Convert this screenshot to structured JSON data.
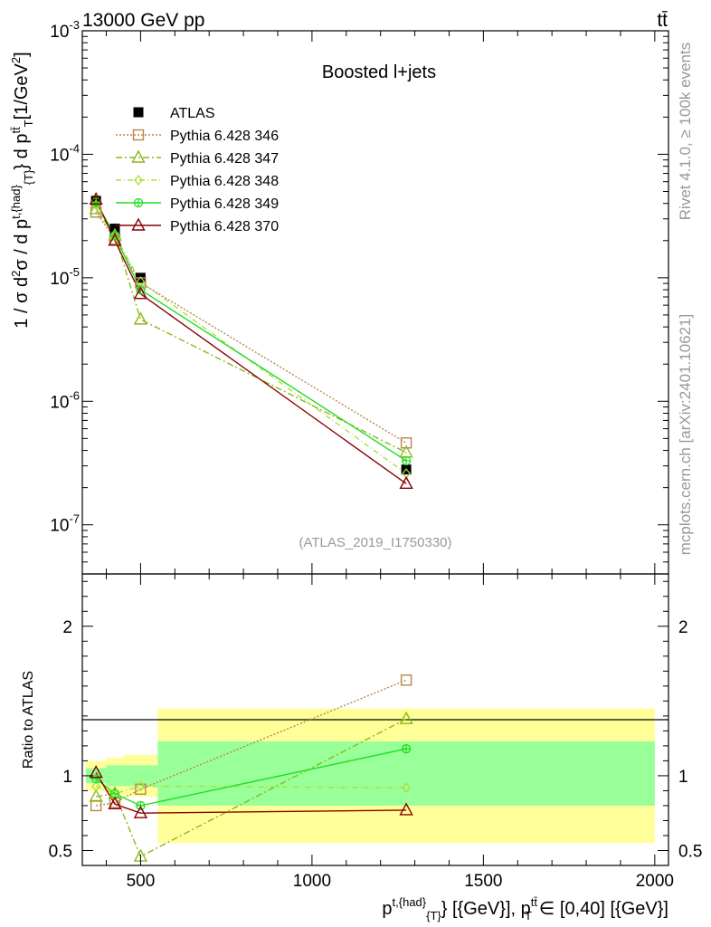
{
  "header": {
    "energy_label": "13000 GeV pp",
    "process_label": "tt̄"
  },
  "side_labels": {
    "rivet": "Rivet 4.1.0, ≥ 100k events",
    "mcplots": "mcplots.cern.ch [arXiv:2401.10621]"
  },
  "colors": {
    "atlas": "#000000",
    "p346": "#b8864b",
    "p347": "#8db81a",
    "p348": "#a8e03a",
    "p349": "#22dd22",
    "p370": "#8b0000",
    "band_inner": "#99ff99",
    "band_outer": "#ffff99"
  },
  "chart_data": [
    {
      "type": "scatter",
      "panel": "main",
      "title": "Boosted l+jets",
      "watermark": "(ATLAS_2019_I1750330)",
      "ylabel": "1 / σ d²σ / d p^{t,{had}}_{T} d p^{tt̄}_{T} [1/GeV²]",
      "ylabel_parts": {
        "base": "1 / σ d",
        "sup2": "2",
        "sigma": "σ / d p",
        "sup_t_had": "t,{had}",
        "sub_T": "{T}",
        "mid": "} d p",
        "sup_tt": "tt̄",
        "sub_T2": "T",
        "unit": "[1/GeV",
        "sup2b": "2",
        "close": "]"
      },
      "y_scale": "log",
      "ylim": [
        4e-08,
        0.001
      ],
      "xlim": [
        330,
        2040
      ],
      "y_ticks": [
        {
          "value": 1e-07,
          "base": "10",
          "exp": "-7"
        },
        {
          "value": 1e-06,
          "base": "10",
          "exp": "-6"
        },
        {
          "value": 1e-05,
          "base": "10",
          "exp": "-5"
        },
        {
          "value": 0.0001,
          "base": "10",
          "exp": "-4"
        },
        {
          "value": 0.001,
          "base": "10",
          "exp": "-3"
        }
      ],
      "series": [
        {
          "name": "ATLAS",
          "key": "atlas",
          "marker": "square-filled",
          "x": [
            370,
            425,
            500,
            1275
          ],
          "y": [
            4.2e-05,
            2.5e-05,
            1e-05,
            2.8e-07
          ]
        },
        {
          "name": "Pythia 6.428 346",
          "key": "p346",
          "marker": "square-open",
          "dash": "2,2",
          "x": [
            370,
            425,
            500,
            1275
          ],
          "y": [
            3.4e-05,
            2.05e-05,
            9.1e-06,
            4.6e-07
          ]
        },
        {
          "name": "Pythia 6.428 347",
          "key": "p347",
          "marker": "triangle-open",
          "dash": "7,3,2,3",
          "x": [
            370,
            425,
            500,
            1275
          ],
          "y": [
            3.6e-05,
            2.2e-05,
            4.6e-06,
            3.85e-07
          ]
        },
        {
          "name": "Pythia 6.428 348",
          "key": "p348",
          "marker": "diamond-open",
          "dash": "6,3,1,3",
          "x": [
            370,
            425,
            500,
            1275
          ],
          "y": [
            3.9e-05,
            2.2e-05,
            9.3e-06,
            2.6e-07
          ]
        },
        {
          "name": "Pythia 6.428 349",
          "key": "p349",
          "marker": "circle-cross",
          "dash": "",
          "x": [
            370,
            425,
            500,
            1275
          ],
          "y": [
            4.1e-05,
            2.2e-05,
            8e-06,
            3.3e-07
          ]
        },
        {
          "name": "Pythia 6.428 370",
          "key": "p370",
          "marker": "triangle-open",
          "dash": "",
          "x": [
            370,
            425,
            500,
            1275
          ],
          "y": [
            4.3e-05,
            2e-05,
            7.4e-06,
            2.15e-07
          ]
        }
      ]
    },
    {
      "type": "scatter",
      "panel": "ratio",
      "ylabel": "Ratio to ATLAS",
      "xlabel": "p^{t,{had}}_{T} [{GeV}], p^{tt̄}_{T} ∈ [0,40] [{GeV}]",
      "xlabel_parts": {
        "p1": "p",
        "sup1": "t,{had}",
        "sub1": "{T}",
        "mid": "} [{GeV}], p",
        "sup2": "tt̄",
        "sub2": "T",
        "end": "∈ [0,40] [{GeV}]"
      },
      "ylim": [
        0.4,
        2.35
      ],
      "xlim": [
        330,
        2040
      ],
      "x_ticks": [
        500,
        1000,
        1500,
        2000
      ],
      "x_tick_labels": [
        "500",
        "1000",
        "1500",
        "2000"
      ],
      "y_ticks": [
        0.5,
        1,
        2
      ],
      "y_tick_labels": [
        "0.5",
        "1",
        "2"
      ],
      "bands": [
        {
          "x0": 340,
          "x1": 400,
          "inner": [
            0.95,
            1.05
          ],
          "outer": [
            0.9,
            1.1
          ]
        },
        {
          "x0": 400,
          "x1": 450,
          "inner": [
            0.93,
            1.07
          ],
          "outer": [
            0.88,
            1.12
          ]
        },
        {
          "x0": 450,
          "x1": 550,
          "inner": [
            0.93,
            1.07
          ],
          "outer": [
            0.86,
            1.14
          ]
        },
        {
          "x0": 550,
          "x1": 2000,
          "inner": [
            0.8,
            1.23
          ],
          "outer": [
            0.55,
            1.45
          ]
        }
      ],
      "series": [
        {
          "name": "Pythia 6.428 346",
          "key": "p346",
          "marker": "square-open",
          "dash": "2,2",
          "x": [
            370,
            425,
            500,
            1275
          ],
          "y": [
            0.8,
            0.82,
            0.91,
            1.64
          ]
        },
        {
          "name": "Pythia 6.428 347",
          "key": "p347",
          "marker": "triangle-open",
          "dash": "7,3,2,3",
          "x": [
            370,
            425,
            500,
            1275
          ],
          "y": [
            0.86,
            0.88,
            0.46,
            1.38
          ]
        },
        {
          "name": "Pythia 6.428 348",
          "key": "p348",
          "marker": "diamond-open",
          "dash": "6,3,1,3",
          "x": [
            370,
            425,
            500,
            1275
          ],
          "y": [
            0.93,
            0.88,
            0.93,
            0.92
          ]
        },
        {
          "name": "Pythia 6.428 349",
          "key": "p349",
          "marker": "circle-cross",
          "dash": "",
          "x": [
            370,
            425,
            500,
            1275
          ],
          "y": [
            0.98,
            0.88,
            0.8,
            1.18
          ]
        },
        {
          "name": "Pythia 6.428 370",
          "key": "p370",
          "marker": "triangle-open",
          "dash": "",
          "x": [
            370,
            425,
            500,
            1275
          ],
          "y": [
            1.02,
            0.81,
            0.75,
            0.77
          ]
        }
      ]
    }
  ]
}
